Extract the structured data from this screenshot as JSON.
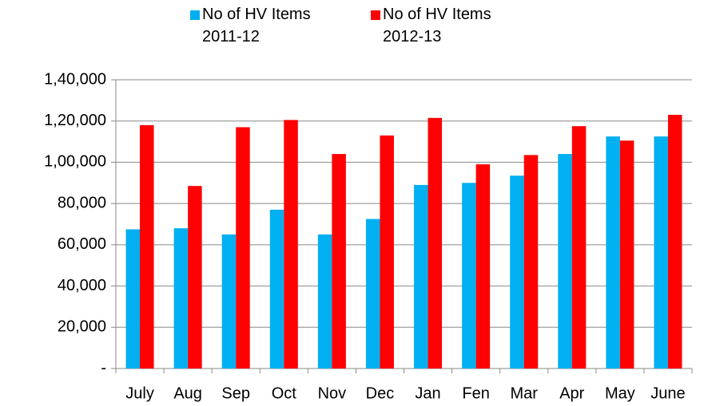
{
  "chart_data": {
    "type": "bar",
    "categories": [
      "July",
      "Aug",
      "Sep",
      "Oct",
      "Nov",
      "Dec",
      "Jan",
      "Fen",
      "Mar",
      "Apr",
      "May",
      "June"
    ],
    "series": [
      {
        "name": "No of HV Items 2011-12",
        "color": "#00b0f0",
        "values": [
          67500,
          68000,
          65000,
          77000,
          65000,
          72500,
          89000,
          90000,
          93500,
          104000,
          112500,
          112500
        ]
      },
      {
        "name": "No of HV Items 2012-13",
        "color": "#ff0000",
        "values": [
          118000,
          88500,
          117000,
          120500,
          104000,
          113000,
          121500,
          99000,
          103500,
          117500,
          110500,
          123000
        ]
      }
    ],
    "ylim": [
      0,
      140000
    ],
    "yticks": [
      {
        "value": 0,
        "label": "-"
      },
      {
        "value": 20000,
        "label": "20,000"
      },
      {
        "value": 40000,
        "label": "40,000"
      },
      {
        "value": 60000,
        "label": "60,000"
      },
      {
        "value": 80000,
        "label": "80,000"
      },
      {
        "value": 100000,
        "label": "1,00,000"
      },
      {
        "value": 120000,
        "label": "1,20,000"
      },
      {
        "value": 140000,
        "label": "1,40,000"
      }
    ],
    "grid": true,
    "legend": "top"
  }
}
